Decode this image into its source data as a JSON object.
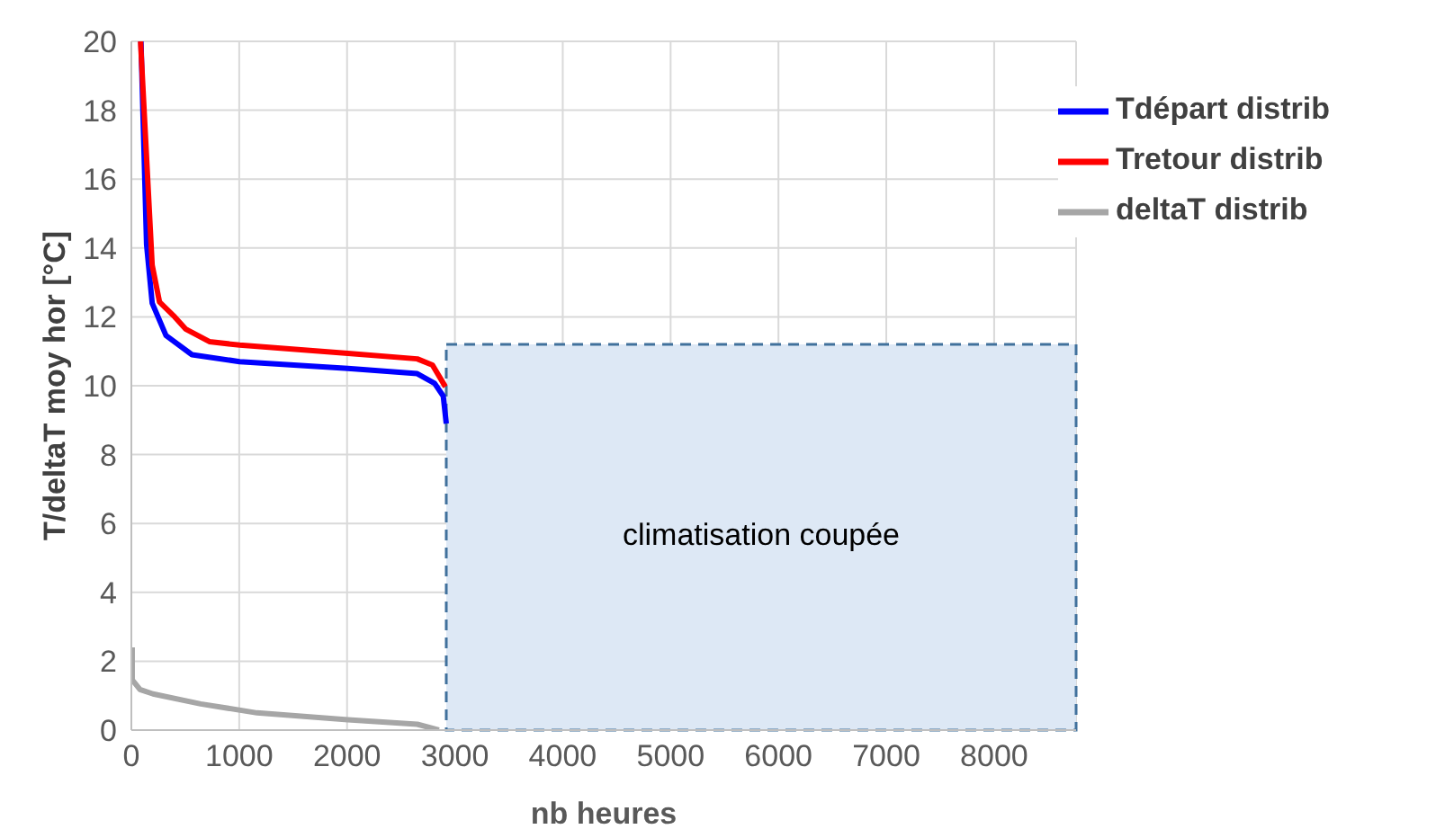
{
  "chart_data": {
    "type": "line",
    "xlabel": "nb heures",
    "ylabel": "T/deltaT moy hor [°C]",
    "xlim": [
      0,
      8760
    ],
    "ylim": [
      0,
      20
    ],
    "xticks": [
      0,
      1000,
      2000,
      3000,
      4000,
      5000,
      6000,
      7000,
      8000
    ],
    "yticks": [
      0,
      2,
      4,
      6,
      8,
      10,
      12,
      14,
      16,
      18,
      20
    ],
    "grid": true,
    "legend": "top right",
    "marker": "none",
    "line_style": "solid",
    "series": [
      {
        "name": "Tdépart distrib",
        "color": "#0000ff",
        "x": [
          89,
          141,
          193,
          321,
          562,
          1004,
          2008,
          2651,
          2812,
          2892,
          2920
        ],
        "values": [
          20,
          14.1,
          12.4,
          11.46,
          10.9,
          10.7,
          10.5,
          10.35,
          10.07,
          9.7,
          8.9
        ]
      },
      {
        "name": "Tretour distrib",
        "color": "#ff0000",
        "x": [
          85,
          193,
          261,
          402,
          502,
          723,
          1004,
          2008,
          2651,
          2792,
          2912
        ],
        "values": [
          20,
          13.5,
          12.43,
          12,
          11.65,
          11.28,
          11.18,
          10.94,
          10.78,
          10.6,
          9.97
        ]
      },
      {
        "name": "deltaT distrib",
        "color": "#a6a6a6",
        "x": [
          8,
          8,
          80,
          201,
          643,
          1165,
          2008,
          2651,
          2852
        ],
        "values": [
          2.4,
          1.46,
          1.18,
          1.05,
          0.76,
          0.5,
          0.3,
          0.17,
          0
        ]
      }
    ],
    "bands": [
      {
        "axis": "x",
        "from": 2920,
        "to": 8760,
        "label": "climatisation coupée",
        "color": "#dde8f5"
      }
    ]
  }
}
